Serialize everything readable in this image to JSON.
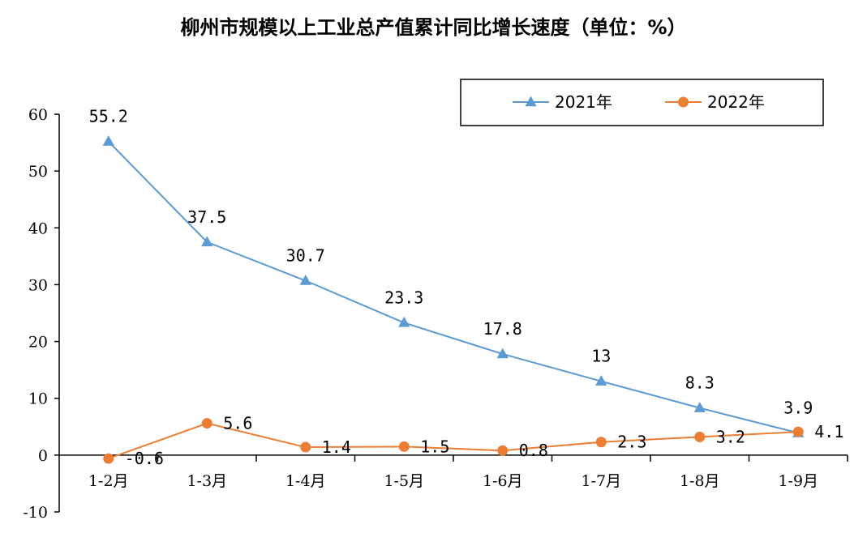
{
  "chart_data": {
    "type": "line",
    "title": "柳州市规模以上工业总产值累计同比增长速度（单位：%）",
    "categories": [
      "1-2月",
      "1-3月",
      "1-4月",
      "1-5月",
      "1-6月",
      "1-7月",
      "1-8月",
      "1-9月"
    ],
    "series": [
      {
        "name": "2021年",
        "values": [
          55.2,
          37.5,
          30.7,
          23.3,
          17.8,
          13,
          8.3,
          3.9
        ],
        "labels": [
          "55.2",
          "37.5",
          "30.7",
          "23.3",
          "17.8",
          "13",
          "8.3",
          "3.9"
        ],
        "color": "#5B9BD5",
        "marker": "triangle"
      },
      {
        "name": "2022年",
        "values": [
          -0.6,
          5.6,
          1.4,
          1.5,
          0.8,
          2.3,
          3.2,
          4.1
        ],
        "labels": [
          "-0.6",
          "5.6",
          "1.4",
          "1.5",
          "0.8",
          "2.3",
          "3.2",
          "4.1"
        ],
        "color": "#ED7D31",
        "marker": "circle"
      }
    ],
    "y_ticks": [
      "-10",
      "0",
      "10",
      "20",
      "30",
      "40",
      "50",
      "60"
    ],
    "ylim": [
      -10,
      60
    ],
    "grid": false,
    "legend_position": "top-right"
  }
}
